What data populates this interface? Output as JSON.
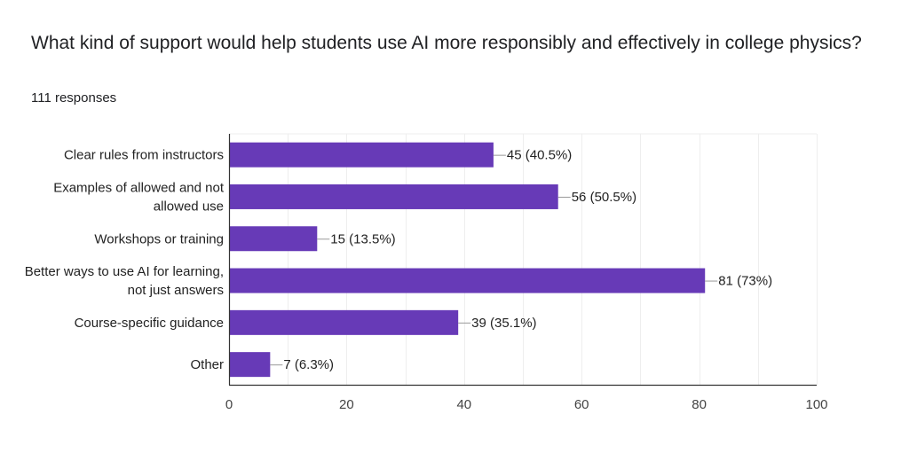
{
  "question": {
    "title": "What kind of support would help students use AI more responsibly and effectively in college physics?",
    "responses": "111 responses"
  },
  "colors": {
    "bar": "#673ab7",
    "grid": "#eeeeee",
    "axis": "#333333",
    "leader": "#999999"
  },
  "chart_data": {
    "type": "bar",
    "orientation": "horizontal",
    "title": "What kind of support would help students use AI more responsibly and effectively in college physics?",
    "subtitle": "111 responses",
    "categories": [
      [
        "Clear rules from instructors"
      ],
      [
        "Examples of allowed and not",
        "allowed use"
      ],
      [
        "Workshops or training"
      ],
      [
        "Better ways to use AI for learning,",
        "not just answers"
      ],
      [
        "Course-specific guidance"
      ],
      [
        "Other"
      ]
    ],
    "values": [
      45,
      56,
      15,
      81,
      39,
      7
    ],
    "value_labels": [
      "45 (40.5%)",
      "56 (50.5%)",
      "15 (13.5%)",
      "81 (73%)",
      "39 (35.1%)",
      "7 (6.3%)"
    ],
    "xlim": [
      0,
      100
    ],
    "xticks": [
      0,
      20,
      40,
      60,
      80,
      100
    ],
    "xlabel": "",
    "ylabel": "",
    "grid": true
  }
}
